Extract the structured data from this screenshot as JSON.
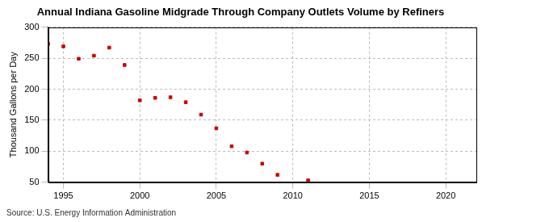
{
  "chart_data": {
    "type": "scatter",
    "title": "Annual Indiana Gasoline Midgrade Through Company Outlets Volume by Refiners",
    "y_label": "Thousand Gallons per Day",
    "source": "Source: U.S. Energy Information Administration",
    "x": [
      1994,
      1995,
      1996,
      1997,
      1998,
      1999,
      2000,
      2001,
      2002,
      2003,
      2004,
      2005,
      2006,
      2007,
      2008,
      2009,
      2011
    ],
    "values": [
      273,
      269,
      249,
      254,
      267,
      239,
      182,
      186,
      187,
      179,
      159,
      137,
      108,
      98,
      80,
      62,
      53
    ],
    "color": "#cc0000",
    "marker": "square",
    "xlim": [
      1994,
      2022
    ],
    "xticks": [
      1995,
      2000,
      2005,
      2010,
      2015,
      2020
    ],
    "ylim": [
      50,
      300
    ],
    "yticks": [
      50,
      100,
      150,
      200,
      250,
      300
    ],
    "grid": true
  }
}
